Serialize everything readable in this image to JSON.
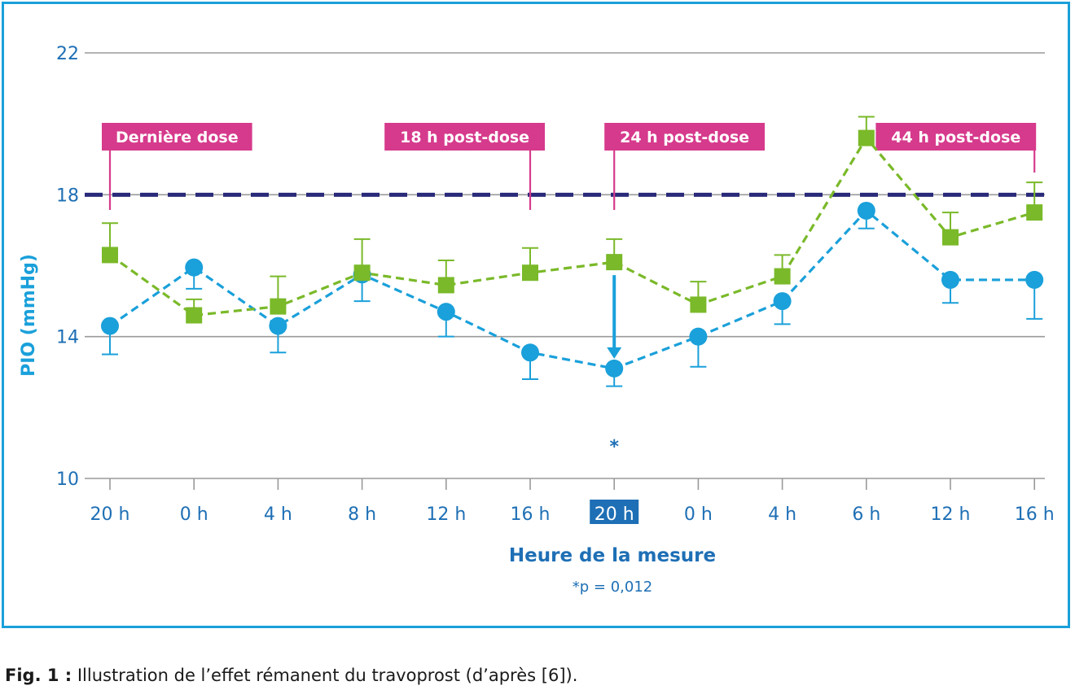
{
  "chart_data": {
    "type": "line",
    "ylabel": "PIO (mmHg)",
    "xlabel": "Heure de la mesure",
    "footnote": "*p = 0,012",
    "significance_marker": "*",
    "ylim": [
      10,
      22
    ],
    "yticks": [
      10,
      14,
      18,
      22
    ],
    "grid": true,
    "categories": [
      "20 h",
      "0 h",
      "4 h",
      "8 h",
      "12 h",
      "16 h",
      "20 h",
      "0 h",
      "4 h",
      "6 h",
      "12 h",
      "16 h"
    ],
    "highlighted_category_index": 6,
    "reference_line": {
      "y": 18,
      "style": "dashed",
      "color": "#2a2a7a"
    },
    "annotations": [
      {
        "label": "Dernière dose",
        "category_index": 0
      },
      {
        "label": "18 h post-dose",
        "category_index": 5
      },
      {
        "label": "24 h post-dose",
        "category_index": 6
      },
      {
        "label": "44 h post-dose",
        "category_index": 11
      }
    ],
    "series": [
      {
        "marker": "circle",
        "color": "#1aa0da",
        "values": [
          14.3,
          15.95,
          14.3,
          15.75,
          14.7,
          13.55,
          13.1,
          14.0,
          15.0,
          17.55,
          15.6,
          15.6
        ],
        "error_low": [
          13.5,
          15.35,
          13.55,
          15.0,
          14.0,
          12.8,
          12.6,
          13.15,
          14.35,
          17.05,
          14.95,
          14.5
        ]
      },
      {
        "marker": "square",
        "color": "#7ab929",
        "values": [
          16.3,
          14.6,
          14.85,
          15.8,
          15.45,
          15.8,
          16.1,
          14.9,
          15.7,
          19.6,
          16.8,
          17.5
        ],
        "error_high": [
          17.2,
          15.05,
          15.7,
          16.75,
          16.15,
          16.5,
          16.75,
          15.55,
          16.3,
          20.2,
          17.5,
          18.35
        ]
      }
    ],
    "significance_arrow": {
      "category_index": 6,
      "from": 16.1,
      "to": 13.1,
      "color": "#1aa0da"
    }
  },
  "caption": {
    "label": "Fig. 1 :",
    "text": " Illustration de l’effet rémanent du travoprost (d’après [6])."
  },
  "colors": {
    "frame": "#1aa0da",
    "axis_text": "#1e6fb5",
    "annotation_box": "#d63a8c",
    "grid": "#9a9a9a"
  }
}
